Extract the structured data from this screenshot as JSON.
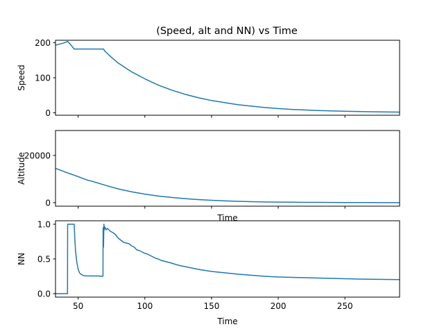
{
  "chart_data": {
    "type": "line",
    "title": "(Speed, alt and NN) vs Time",
    "xlim": [
      33,
      291
    ],
    "series_color": "#1f77b4",
    "panels": [
      {
        "ylabel": "Speed",
        "xlabel": "",
        "ylim": [
          -7,
          207
        ],
        "yticks": [
          0,
          100,
          200
        ],
        "xticks": [
          50,
          100,
          150,
          200,
          250
        ],
        "xticklabels": false,
        "series": [
          {
            "x": [
              33,
              36,
              39,
              41,
              42,
              44,
              47,
              50,
              55,
              60,
              65,
              69,
              70,
              75,
              80,
              90,
              100,
              110,
              120,
              130,
              140,
              150,
              160,
              170,
              180,
              190,
              200,
              210,
              220,
              230,
              240,
              250,
              260,
              270,
              280,
              291
            ],
            "y": [
              193,
              196,
              199,
              202,
              204,
              196,
              182,
              182,
              182,
              182,
              182,
              182,
              176,
              158,
              142,
              117,
              97,
              79,
              65,
              53,
              43,
              35,
              29,
              23,
              19,
              15,
              12,
              9.7,
              8,
              6.5,
              5.3,
              4.4,
              3.6,
              3,
              2.5,
              2
            ]
          }
        ]
      },
      {
        "ylabel": "Altitude",
        "xlabel": "Time",
        "ylim": [
          -1500,
          30500
        ],
        "yticks": [
          0,
          20000
        ],
        "xticks": [
          50,
          100,
          150,
          200,
          250
        ],
        "xticklabels": false,
        "series": [
          {
            "x": [
              33,
              40,
              50,
              57,
              60,
              70,
              80,
              90,
              100,
              110,
              120,
              130,
              140,
              150,
              160,
              170,
              180,
              190,
              200,
              210,
              220,
              230,
              240,
              250,
              260,
              270,
              280,
              291
            ],
            "y": [
              14500,
              13000,
              11000,
              9500,
              9100,
              7400,
              5800,
              4600,
              3600,
              2800,
              2200,
              1700,
              1300,
              1000,
              750,
              560,
              420,
              310,
              230,
              170,
              130,
              100,
              75,
              55,
              40,
              30,
              20,
              15
            ]
          }
        ]
      },
      {
        "ylabel": "NN",
        "xlabel": "Time",
        "ylim": [
          -0.05,
          1.05
        ],
        "yticks": [
          0.0,
          0.5,
          1.0
        ],
        "xticks": [
          50,
          100,
          150,
          200,
          250
        ],
        "xticklabels": true,
        "series": [
          {
            "x": [
              33,
              42,
              42.1,
              44,
              47,
              47.5,
              48,
              49,
              50,
              51,
              52,
              54,
              56,
              60,
              65,
              68,
              68.6,
              68.7,
              69,
              69.3,
              69.6,
              70,
              71,
              72,
              74,
              76,
              78,
              80,
              82,
              84,
              86,
              88,
              90,
              92,
              94,
              96,
              98,
              100,
              102,
              104,
              106,
              108,
              110,
              112,
              114,
              116,
              118,
              120,
              125,
              130,
              140,
              150,
              160,
              170,
              180,
              190,
              200,
              210,
              220,
              230,
              240,
              250,
              260,
              270,
              280,
              291
            ],
            "y": [
              0,
              0,
              1,
              1,
              1,
              0.78,
              0.62,
              0.45,
              0.35,
              0.3,
              0.28,
              0.26,
              0.255,
              0.255,
              0.255,
              0.25,
              0.25,
              0.95,
              0.67,
              1,
              0.92,
              0.96,
              0.92,
              0.94,
              0.9,
              0.88,
              0.85,
              0.8,
              0.77,
              0.74,
              0.73,
              0.72,
              0.69,
              0.67,
              0.63,
              0.62,
              0.6,
              0.58,
              0.57,
              0.55,
              0.53,
              0.51,
              0.5,
              0.48,
              0.47,
              0.46,
              0.45,
              0.44,
              0.41,
              0.39,
              0.35,
              0.32,
              0.3,
              0.28,
              0.265,
              0.25,
              0.24,
              0.235,
              0.23,
              0.225,
              0.22,
              0.215,
              0.21,
              0.207,
              0.205,
              0.203
            ]
          }
        ]
      }
    ]
  }
}
